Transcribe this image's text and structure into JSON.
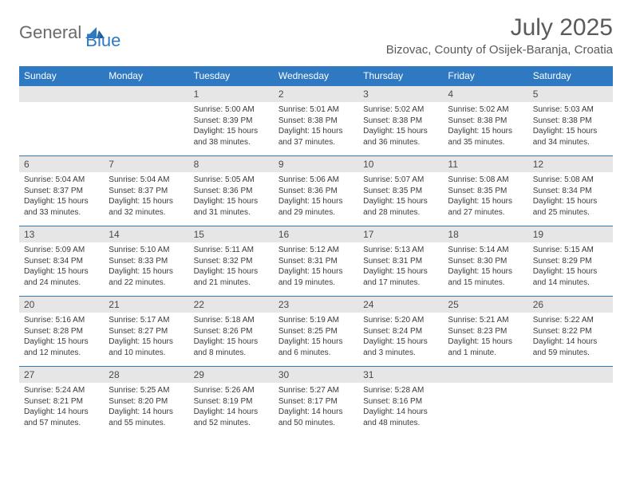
{
  "brand": {
    "part1": "General",
    "part2": "Blue"
  },
  "title": "July 2025",
  "location": "Bizovac, County of Osijek-Baranja, Croatia",
  "colors": {
    "header_bg": "#2f79c2",
    "header_text": "#ffffff",
    "daynum_bg": "#e6e6e6",
    "text": "#3a3a3a",
    "title_color": "#5a5a5a",
    "border": "#2f79c2"
  },
  "weekdays": [
    "Sunday",
    "Monday",
    "Tuesday",
    "Wednesday",
    "Thursday",
    "Friday",
    "Saturday"
  ],
  "weeks": [
    [
      null,
      null,
      {
        "n": "1",
        "sr": "Sunrise: 5:00 AM",
        "ss": "Sunset: 8:39 PM",
        "dl": "Daylight: 15 hours and 38 minutes."
      },
      {
        "n": "2",
        "sr": "Sunrise: 5:01 AM",
        "ss": "Sunset: 8:38 PM",
        "dl": "Daylight: 15 hours and 37 minutes."
      },
      {
        "n": "3",
        "sr": "Sunrise: 5:02 AM",
        "ss": "Sunset: 8:38 PM",
        "dl": "Daylight: 15 hours and 36 minutes."
      },
      {
        "n": "4",
        "sr": "Sunrise: 5:02 AM",
        "ss": "Sunset: 8:38 PM",
        "dl": "Daylight: 15 hours and 35 minutes."
      },
      {
        "n": "5",
        "sr": "Sunrise: 5:03 AM",
        "ss": "Sunset: 8:38 PM",
        "dl": "Daylight: 15 hours and 34 minutes."
      }
    ],
    [
      {
        "n": "6",
        "sr": "Sunrise: 5:04 AM",
        "ss": "Sunset: 8:37 PM",
        "dl": "Daylight: 15 hours and 33 minutes."
      },
      {
        "n": "7",
        "sr": "Sunrise: 5:04 AM",
        "ss": "Sunset: 8:37 PM",
        "dl": "Daylight: 15 hours and 32 minutes."
      },
      {
        "n": "8",
        "sr": "Sunrise: 5:05 AM",
        "ss": "Sunset: 8:36 PM",
        "dl": "Daylight: 15 hours and 31 minutes."
      },
      {
        "n": "9",
        "sr": "Sunrise: 5:06 AM",
        "ss": "Sunset: 8:36 PM",
        "dl": "Daylight: 15 hours and 29 minutes."
      },
      {
        "n": "10",
        "sr": "Sunrise: 5:07 AM",
        "ss": "Sunset: 8:35 PM",
        "dl": "Daylight: 15 hours and 28 minutes."
      },
      {
        "n": "11",
        "sr": "Sunrise: 5:08 AM",
        "ss": "Sunset: 8:35 PM",
        "dl": "Daylight: 15 hours and 27 minutes."
      },
      {
        "n": "12",
        "sr": "Sunrise: 5:08 AM",
        "ss": "Sunset: 8:34 PM",
        "dl": "Daylight: 15 hours and 25 minutes."
      }
    ],
    [
      {
        "n": "13",
        "sr": "Sunrise: 5:09 AM",
        "ss": "Sunset: 8:34 PM",
        "dl": "Daylight: 15 hours and 24 minutes."
      },
      {
        "n": "14",
        "sr": "Sunrise: 5:10 AM",
        "ss": "Sunset: 8:33 PM",
        "dl": "Daylight: 15 hours and 22 minutes."
      },
      {
        "n": "15",
        "sr": "Sunrise: 5:11 AM",
        "ss": "Sunset: 8:32 PM",
        "dl": "Daylight: 15 hours and 21 minutes."
      },
      {
        "n": "16",
        "sr": "Sunrise: 5:12 AM",
        "ss": "Sunset: 8:31 PM",
        "dl": "Daylight: 15 hours and 19 minutes."
      },
      {
        "n": "17",
        "sr": "Sunrise: 5:13 AM",
        "ss": "Sunset: 8:31 PM",
        "dl": "Daylight: 15 hours and 17 minutes."
      },
      {
        "n": "18",
        "sr": "Sunrise: 5:14 AM",
        "ss": "Sunset: 8:30 PM",
        "dl": "Daylight: 15 hours and 15 minutes."
      },
      {
        "n": "19",
        "sr": "Sunrise: 5:15 AM",
        "ss": "Sunset: 8:29 PM",
        "dl": "Daylight: 15 hours and 14 minutes."
      }
    ],
    [
      {
        "n": "20",
        "sr": "Sunrise: 5:16 AM",
        "ss": "Sunset: 8:28 PM",
        "dl": "Daylight: 15 hours and 12 minutes."
      },
      {
        "n": "21",
        "sr": "Sunrise: 5:17 AM",
        "ss": "Sunset: 8:27 PM",
        "dl": "Daylight: 15 hours and 10 minutes."
      },
      {
        "n": "22",
        "sr": "Sunrise: 5:18 AM",
        "ss": "Sunset: 8:26 PM",
        "dl": "Daylight: 15 hours and 8 minutes."
      },
      {
        "n": "23",
        "sr": "Sunrise: 5:19 AM",
        "ss": "Sunset: 8:25 PM",
        "dl": "Daylight: 15 hours and 6 minutes."
      },
      {
        "n": "24",
        "sr": "Sunrise: 5:20 AM",
        "ss": "Sunset: 8:24 PM",
        "dl": "Daylight: 15 hours and 3 minutes."
      },
      {
        "n": "25",
        "sr": "Sunrise: 5:21 AM",
        "ss": "Sunset: 8:23 PM",
        "dl": "Daylight: 15 hours and 1 minute."
      },
      {
        "n": "26",
        "sr": "Sunrise: 5:22 AM",
        "ss": "Sunset: 8:22 PM",
        "dl": "Daylight: 14 hours and 59 minutes."
      }
    ],
    [
      {
        "n": "27",
        "sr": "Sunrise: 5:24 AM",
        "ss": "Sunset: 8:21 PM",
        "dl": "Daylight: 14 hours and 57 minutes."
      },
      {
        "n": "28",
        "sr": "Sunrise: 5:25 AM",
        "ss": "Sunset: 8:20 PM",
        "dl": "Daylight: 14 hours and 55 minutes."
      },
      {
        "n": "29",
        "sr": "Sunrise: 5:26 AM",
        "ss": "Sunset: 8:19 PM",
        "dl": "Daylight: 14 hours and 52 minutes."
      },
      {
        "n": "30",
        "sr": "Sunrise: 5:27 AM",
        "ss": "Sunset: 8:17 PM",
        "dl": "Daylight: 14 hours and 50 minutes."
      },
      {
        "n": "31",
        "sr": "Sunrise: 5:28 AM",
        "ss": "Sunset: 8:16 PM",
        "dl": "Daylight: 14 hours and 48 minutes."
      },
      null,
      null
    ]
  ]
}
